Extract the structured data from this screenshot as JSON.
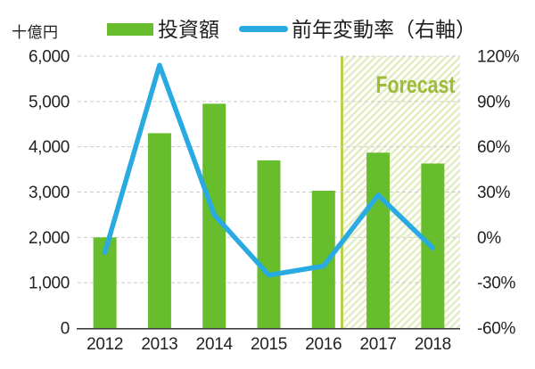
{
  "unit_label": "十億円",
  "legend": {
    "bar_label": "投資額",
    "line_label": "前年変動率（右軸）"
  },
  "forecast_label": "Forecast",
  "colors": {
    "bar": "#68bd2d",
    "line": "#29abe2",
    "gridline": "#cbcbcb",
    "axis_line": "#404040",
    "tick_text": "#222222",
    "forecast_text": "#9ebc3a",
    "forecast_divider": "#b5d04d",
    "hatch_stripe": "#e2ecc0"
  },
  "chart_data": {
    "type": "bar+line combo",
    "categories": [
      "2012",
      "2013",
      "2014",
      "2015",
      "2016",
      "2017",
      "2018"
    ],
    "series": [
      {
        "name": "投資額",
        "chart": "bar",
        "axis": "left",
        "values": [
          2000,
          4300,
          4950,
          3700,
          3030,
          3870,
          3630
        ]
      },
      {
        "name": "前年変動率（右軸）",
        "chart": "line",
        "axis": "right",
        "unit": "%",
        "values": [
          -10,
          114,
          15,
          -25,
          -19,
          28,
          -7
        ]
      }
    ],
    "left_axis": {
      "title": "十億円",
      "min": 0,
      "max": 6000,
      "tick_values": [
        0,
        1000,
        2000,
        3000,
        4000,
        5000,
        6000
      ],
      "tick_labels": [
        "0",
        "1,000",
        "2,000",
        "3,000",
        "4,000",
        "5,000",
        "6,000"
      ]
    },
    "right_axis": {
      "title": "前年変動率（右軸）",
      "min": -60,
      "max": 120,
      "tick_values": [
        -60,
        -30,
        0,
        30,
        60,
        90,
        120
      ],
      "tick_labels": [
        "-60%",
        "-30%",
        "0%",
        "30%",
        "60%",
        "90%",
        "120%"
      ]
    },
    "forecast": {
      "label": "Forecast",
      "categories": [
        "2017",
        "2018"
      ]
    },
    "grid": "dashed-horizontal",
    "legend_position": "top"
  }
}
